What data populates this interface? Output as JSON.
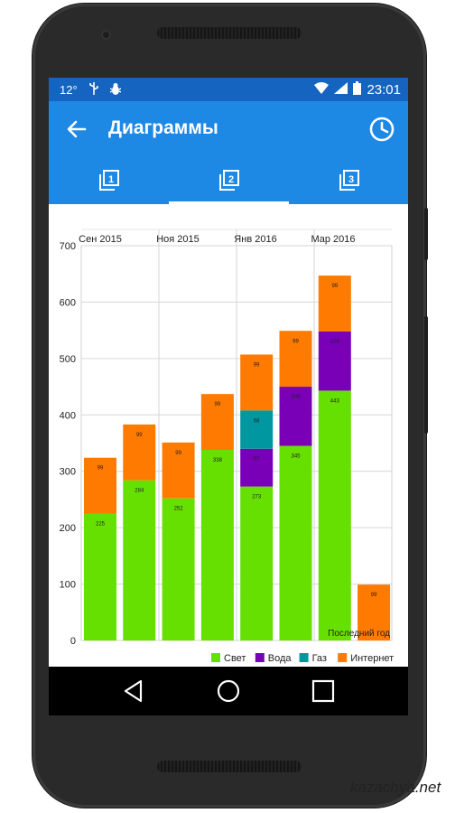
{
  "status": {
    "temperature": "12°",
    "time": "23:01"
  },
  "appbar": {
    "title": "Диаграммы"
  },
  "tabs": [
    {
      "label": "1"
    },
    {
      "label": "2",
      "selected": true
    },
    {
      "label": "3"
    }
  ],
  "colors": {
    "light": "#66e000",
    "water": "#7a00b8",
    "gas": "#0097a0",
    "internet": "#ff7a00",
    "accent": "#1e88e5"
  },
  "chart_data": {
    "type": "bar",
    "stacked": true,
    "top_labels": [
      "Сен 2015",
      "Ноя 2015",
      "Янв 2016",
      "Мар 2016"
    ],
    "y_ticks": [
      0,
      100,
      200,
      300,
      400,
      500,
      600,
      700
    ],
    "ylim": [
      0,
      700
    ],
    "series": [
      {
        "name": "Свет",
        "color": "#66e000",
        "values": [
          225,
          284,
          252,
          338,
          273,
          345,
          443,
          0
        ]
      },
      {
        "name": "Вода",
        "color": "#7a00b8",
        "values": [
          0,
          0,
          0,
          0,
          67,
          105,
          105,
          0
        ]
      },
      {
        "name": "Газ",
        "color": "#0097a0",
        "values": [
          0,
          0,
          0,
          0,
          68,
          0,
          0,
          0
        ]
      },
      {
        "name": "Интернет",
        "color": "#ff7a00",
        "values": [
          99,
          99,
          99,
          99,
          99,
          99,
          99,
          99
        ]
      }
    ],
    "data_labels": [
      [
        "225",
        "",
        "",
        "99"
      ],
      [
        "284",
        "",
        "",
        "99"
      ],
      [
        "252",
        "",
        "",
        "99"
      ],
      [
        "338",
        "",
        "",
        "99"
      ],
      [
        "273",
        "67",
        "68",
        "99"
      ],
      [
        "345",
        "105",
        "",
        "99"
      ],
      [
        "443",
        "105",
        "",
        "99"
      ],
      [
        "",
        "",
        "",
        "99"
      ]
    ],
    "last_bar_label": "Последний год",
    "grid": true,
    "legend_position": "bottom-right"
  },
  "watermark": "kazachya.net"
}
